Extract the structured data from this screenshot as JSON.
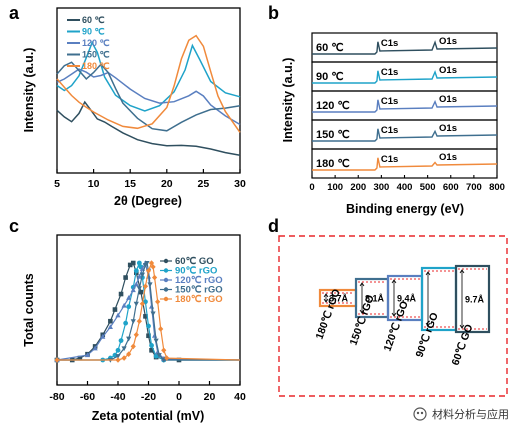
{
  "panels": {
    "a": "a",
    "b": "b",
    "c": "c",
    "d": "d"
  },
  "colors": {
    "60": "#2f4f5f",
    "90": "#1fa3c9",
    "120": "#5a7fc0",
    "150": "#3f6f8f",
    "180": "#f08a3c",
    "dashed_frame": "#e8272a"
  },
  "chart_data": [
    {
      "id": "a",
      "type": "line",
      "xlabel": "2θ (Degree)",
      "ylabel": "Intensity (a.u.)",
      "xlim": [
        5,
        30
      ],
      "xticks": [
        "5",
        "10",
        "15",
        "20",
        "25",
        "30"
      ],
      "legend_position": "top-left",
      "series": [
        {
          "name": "60 ℃",
          "color": "#2f4f5f",
          "x": [
            5,
            6,
            7,
            8,
            8.8,
            9.5,
            10.5,
            11.5,
            12.5,
            14,
            16,
            18,
            20,
            22,
            24,
            26,
            28,
            30
          ],
          "y": [
            0.38,
            0.33,
            0.3,
            0.36,
            0.44,
            0.4,
            0.33,
            0.3,
            0.27,
            0.24,
            0.21,
            0.19,
            0.17,
            0.16,
            0.15,
            0.14,
            0.13,
            0.12
          ]
        },
        {
          "name": "90 ℃",
          "color": "#1fa3c9",
          "x": [
            5,
            6,
            7,
            8,
            9,
            9.8,
            10.5,
            11.5,
            13,
            15,
            17,
            19,
            21,
            22.5,
            23.5,
            24.5,
            26,
            28,
            30
          ],
          "y": [
            0.52,
            0.5,
            0.54,
            0.6,
            0.7,
            0.78,
            0.72,
            0.58,
            0.48,
            0.42,
            0.38,
            0.4,
            0.48,
            0.62,
            0.78,
            0.7,
            0.56,
            0.48,
            0.45
          ]
        },
        {
          "name": "120 ℃",
          "color": "#5a7fc0",
          "x": [
            5,
            6,
            7,
            8,
            9,
            10,
            11,
            12,
            13,
            15,
            17,
            19,
            21,
            23,
            24,
            25,
            26,
            28,
            30
          ],
          "y": [
            0.56,
            0.58,
            0.6,
            0.62,
            0.6,
            0.58,
            0.6,
            0.62,
            0.58,
            0.5,
            0.44,
            0.42,
            0.44,
            0.48,
            0.5,
            0.46,
            0.4,
            0.34,
            0.3
          ]
        },
        {
          "name": "150 ℃",
          "color": "#3f6f8f",
          "x": [
            5,
            6,
            7,
            8,
            9,
            10,
            11,
            12,
            13,
            14,
            16,
            18,
            20,
            22,
            24,
            26,
            28,
            30
          ],
          "y": [
            0.6,
            0.64,
            0.66,
            0.62,
            0.58,
            0.62,
            0.66,
            0.6,
            0.5,
            0.42,
            0.34,
            0.28,
            0.26,
            0.3,
            0.34,
            0.38,
            0.4,
            0.42
          ]
        },
        {
          "name": "180 ℃",
          "color": "#f08a3c",
          "x": [
            5,
            6,
            7,
            8,
            9,
            10,
            12,
            14,
            16,
            18,
            20,
            21,
            22,
            23,
            24,
            25,
            26,
            27,
            28,
            30
          ],
          "y": [
            0.56,
            0.52,
            0.48,
            0.44,
            0.4,
            0.36,
            0.31,
            0.28,
            0.28,
            0.31,
            0.4,
            0.52,
            0.68,
            0.8,
            0.84,
            0.78,
            0.62,
            0.46,
            0.36,
            0.24
          ]
        }
      ]
    },
    {
      "id": "b",
      "type": "line",
      "xlabel": "Binding energy (eV)",
      "ylabel": "Intensity (a.u.)",
      "xlim": [
        0,
        800
      ],
      "xticks": [
        "0",
        "100",
        "200",
        "300",
        "400",
        "500",
        "600",
        "700",
        "800"
      ],
      "rows": [
        {
          "label": "60 ℃",
          "color": "#2f4f5f",
          "c1s": "C1s",
          "o1s": "O1s",
          "c_peak": 0.8,
          "o_peak": 0.55
        },
        {
          "label": "90 ℃",
          "color": "#1fa3c9",
          "c1s": "C1s",
          "o1s": "O1s",
          "c_peak": 0.8,
          "o_peak": 0.5
        },
        {
          "label": "120 ℃",
          "color": "#5a7fc0",
          "c1s": "C1s",
          "o1s": "O1s",
          "c_peak": 0.8,
          "o_peak": 0.45
        },
        {
          "label": "150 ℃",
          "color": "#3f6f8f",
          "c1s": "C1s",
          "o1s": "O1s",
          "c_peak": 0.8,
          "o_peak": 0.4
        },
        {
          "label": "180 ℃",
          "color": "#f08a3c",
          "c1s": "C1s",
          "o1s": "O1s",
          "c_peak": 0.8,
          "o_peak": 0.25
        }
      ]
    },
    {
      "id": "c",
      "type": "line",
      "xlabel": "Zeta potential (mV)",
      "ylabel": "Total counts",
      "xlim": [
        -80,
        40
      ],
      "xticks": [
        "-80",
        "-60",
        "-40",
        "-20",
        "0",
        "20",
        "40"
      ],
      "legend_position": "top-right",
      "series": [
        {
          "name": "60℃ GO",
          "color": "#2f4f5f",
          "x": [
            -80,
            -70,
            -65,
            -60,
            -55,
            -50,
            -45,
            -42,
            -38,
            -35,
            -32,
            -30,
            -28,
            -25,
            -22,
            -20,
            -18,
            -15,
            -10,
            0,
            40
          ],
          "y": [
            0,
            0,
            0.02,
            0.06,
            0.14,
            0.26,
            0.4,
            0.52,
            0.68,
            0.85,
            0.98,
            1.0,
            0.9,
            0.7,
            0.45,
            0.25,
            0.1,
            0.03,
            0.01,
            0,
            0
          ]
        },
        {
          "name": "90℃ rGO",
          "color": "#1fa3c9",
          "x": [
            -80,
            -50,
            -45,
            -42,
            -40,
            -38,
            -35,
            -33,
            -30,
            -28,
            -26,
            -25,
            -24,
            -22,
            -20,
            -18,
            -15,
            -10,
            40
          ],
          "y": [
            0,
            0,
            0.02,
            0.05,
            0.1,
            0.2,
            0.38,
            0.55,
            0.75,
            0.92,
            1.0,
            0.96,
            0.85,
            0.6,
            0.35,
            0.15,
            0.04,
            0,
            0
          ]
        },
        {
          "name": "120℃ rGO",
          "color": "#5a7fc0",
          "x": [
            -80,
            -60,
            -55,
            -50,
            -45,
            -40,
            -36,
            -33,
            -30,
            -28,
            -26,
            -24,
            -22,
            -20,
            -18,
            -16,
            -14,
            -10,
            40
          ],
          "y": [
            0,
            0.05,
            0.12,
            0.24,
            0.34,
            0.46,
            0.56,
            0.64,
            0.72,
            0.78,
            0.86,
            0.94,
            1.0,
            0.86,
            0.55,
            0.25,
            0.08,
            0.01,
            0
          ]
        },
        {
          "name": "150℃ rGO",
          "color": "#3f6f8f",
          "x": [
            -80,
            -45,
            -40,
            -36,
            -33,
            -30,
            -28,
            -26,
            -24,
            -22,
            -21,
            -20,
            -19,
            -17,
            -15,
            -13,
            -10,
            40
          ],
          "y": [
            0,
            0,
            0.04,
            0.12,
            0.22,
            0.4,
            0.58,
            0.74,
            0.88,
            0.98,
            1.0,
            0.92,
            0.78,
            0.48,
            0.2,
            0.05,
            0,
            0
          ]
        },
        {
          "name": "180℃ rGO",
          "color": "#f08a3c",
          "x": [
            -80,
            -40,
            -36,
            -33,
            -30,
            -28,
            -26,
            -24,
            -22,
            -20,
            -18,
            -17,
            -16,
            -14,
            -12,
            -10,
            -8,
            40
          ],
          "y": [
            0,
            0,
            0.02,
            0.06,
            0.14,
            0.26,
            0.4,
            0.58,
            0.76,
            0.92,
            1.0,
            0.96,
            0.85,
            0.6,
            0.32,
            0.1,
            0.02,
            0
          ]
        }
      ]
    }
  ],
  "panel_d": {
    "bars": [
      {
        "label": "180℃ rGO",
        "value": "3.7Å",
        "color": "#f08a3c"
      },
      {
        "label": "150℃ rGO",
        "value": "8.1Å",
        "color": "#3f6f8f"
      },
      {
        "label": "120℃ rGO",
        "value": "9.4Å",
        "color": "#5a7fc0"
      },
      {
        "label": "90℃ rGO",
        "value": "",
        "color": "#1fa3c9"
      },
      {
        "label": "60℃ GO",
        "value": "9.7Å",
        "color": "#2f4f5f"
      }
    ]
  },
  "watermark": "材料分析与应用"
}
